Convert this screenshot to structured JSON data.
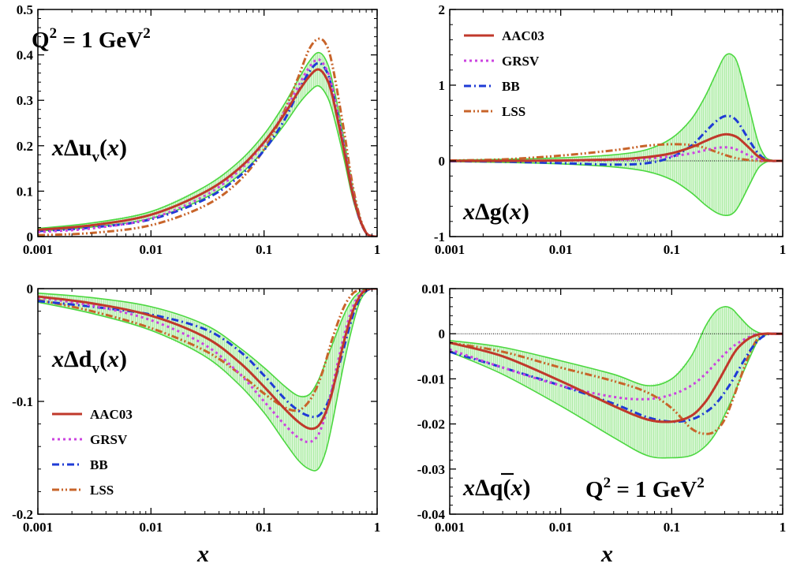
{
  "colors": {
    "AAC03": "#c0392b",
    "GRSV": "#cc44e0",
    "BB": "#1f3bd6",
    "LSS": "#c8642a",
    "band": "#4cd840",
    "band_fill": "#b8efb0"
  },
  "legend": [
    "AAC03",
    "GRSV",
    "BB",
    "LSS"
  ],
  "xlabel": "x",
  "chart_data": [
    {
      "type": "line",
      "panel": "top-left",
      "label": "xΔu_v(x)",
      "annotation": "Q² = 1 GeV²",
      "xscale": "log",
      "xlim": [
        0.001,
        1
      ],
      "ylim": [
        0,
        0.5
      ],
      "xticks": [
        "0.001",
        "0.01",
        "0.1",
        "1"
      ],
      "yticks": [
        "0",
        "0.1",
        "0.2",
        "0.3",
        "0.4",
        "0.5"
      ],
      "x": [
        0.001,
        0.003,
        0.01,
        0.03,
        0.06,
        0.1,
        0.15,
        0.2,
        0.25,
        0.3,
        0.35,
        0.4,
        0.5,
        0.6,
        0.7,
        0.8,
        0.9,
        1.0
      ],
      "band": {
        "upper": [
          0.018,
          0.03,
          0.055,
          0.11,
          0.165,
          0.225,
          0.29,
          0.345,
          0.385,
          0.405,
          0.39,
          0.345,
          0.225,
          0.115,
          0.045,
          0.01,
          0.001,
          0
        ],
        "lower": [
          0.012,
          0.021,
          0.04,
          0.085,
          0.135,
          0.19,
          0.245,
          0.29,
          0.318,
          0.332,
          0.315,
          0.278,
          0.18,
          0.09,
          0.035,
          0.007,
          0.001,
          0
        ]
      },
      "series": [
        {
          "name": "AAC03",
          "style": "solid",
          "values": [
            0.015,
            0.025,
            0.048,
            0.098,
            0.15,
            0.208,
            0.268,
            0.318,
            0.352,
            0.368,
            0.352,
            0.312,
            0.2,
            0.1,
            0.04,
            0.008,
            0.001,
            0
          ]
        },
        {
          "name": "GRSV",
          "style": "dot",
          "values": [
            0.01,
            0.018,
            0.04,
            0.09,
            0.145,
            0.205,
            0.272,
            0.33,
            0.372,
            0.39,
            0.372,
            0.33,
            0.21,
            0.105,
            0.04,
            0.008,
            0.001,
            0
          ]
        },
        {
          "name": "BB",
          "style": "dashdot",
          "values": [
            0.012,
            0.02,
            0.038,
            0.082,
            0.132,
            0.19,
            0.255,
            0.318,
            0.362,
            0.382,
            0.368,
            0.325,
            0.205,
            0.1,
            0.038,
            0.008,
            0.001,
            0
          ]
        },
        {
          "name": "LSS",
          "style": "dashdotdot",
          "values": [
            0.003,
            0.008,
            0.025,
            0.068,
            0.122,
            0.192,
            0.275,
            0.35,
            0.412,
            0.435,
            0.425,
            0.38,
            0.245,
            0.12,
            0.045,
            0.009,
            0.001,
            0
          ]
        }
      ]
    },
    {
      "type": "line",
      "panel": "top-right",
      "label": "xΔg(x)",
      "xscale": "log",
      "xlim": [
        0.001,
        1
      ],
      "ylim": [
        -1,
        2
      ],
      "xticks": [
        "0.001",
        "0.01",
        "0.1",
        "1"
      ],
      "yticks": [
        "-1",
        "0",
        "1",
        "2"
      ],
      "x": [
        0.001,
        0.003,
        0.01,
        0.03,
        0.06,
        0.1,
        0.15,
        0.2,
        0.25,
        0.3,
        0.35,
        0.4,
        0.5,
        0.6,
        0.7,
        0.8,
        0.9,
        1.0
      ],
      "band": {
        "upper": [
          0.01,
          0.02,
          0.04,
          0.08,
          0.15,
          0.3,
          0.55,
          0.85,
          1.15,
          1.38,
          1.4,
          1.25,
          0.7,
          0.25,
          0.05,
          0.01,
          0,
          0
        ],
        "lower": [
          -0.01,
          -0.02,
          -0.04,
          -0.08,
          -0.14,
          -0.25,
          -0.42,
          -0.58,
          -0.68,
          -0.72,
          -0.7,
          -0.6,
          -0.32,
          -0.1,
          -0.02,
          0,
          0,
          0
        ]
      },
      "series": [
        {
          "name": "AAC03",
          "style": "solid",
          "values": [
            0,
            0,
            0.005,
            0.02,
            0.05,
            0.1,
            0.18,
            0.26,
            0.32,
            0.35,
            0.34,
            0.3,
            0.17,
            0.06,
            0.01,
            0,
            0,
            0
          ]
        },
        {
          "name": "GRSV",
          "style": "dot",
          "values": [
            0,
            0,
            0.003,
            0.01,
            0.03,
            0.06,
            0.1,
            0.14,
            0.17,
            0.18,
            0.17,
            0.14,
            0.07,
            0.02,
            0.005,
            0,
            0,
            0
          ]
        },
        {
          "name": "BB",
          "style": "dashdot",
          "values": [
            -0.005,
            -0.01,
            -0.03,
            -0.05,
            -0.03,
            0.05,
            0.2,
            0.38,
            0.52,
            0.59,
            0.58,
            0.5,
            0.27,
            0.1,
            0.02,
            0,
            0,
            0
          ]
        },
        {
          "name": "LSS",
          "style": "dashdotdot",
          "values": [
            0.005,
            0.02,
            0.07,
            0.14,
            0.2,
            0.22,
            0.21,
            0.17,
            0.12,
            0.08,
            0.05,
            0.03,
            0.01,
            0,
            0,
            0,
            0,
            0
          ]
        }
      ]
    },
    {
      "type": "line",
      "panel": "bottom-left",
      "label": "xΔd_v(x)",
      "xscale": "log",
      "xlim": [
        0.001,
        1
      ],
      "ylim": [
        -0.2,
        0
      ],
      "xticks": [
        "0.001",
        "0.01",
        "0.1",
        "1"
      ],
      "yticks": [
        "-0.2",
        "-0.1",
        "0"
      ],
      "xlabel": "x",
      "legend_position": "bottom-left",
      "x": [
        0.001,
        0.003,
        0.01,
        0.03,
        0.06,
        0.1,
        0.15,
        0.2,
        0.25,
        0.3,
        0.35,
        0.4,
        0.5,
        0.6,
        0.7,
        0.8,
        0.9,
        1.0
      ],
      "band": {
        "upper": [
          -0.004,
          -0.008,
          -0.016,
          -0.032,
          -0.052,
          -0.07,
          -0.086,
          -0.095,
          -0.094,
          -0.082,
          -0.065,
          -0.05,
          -0.025,
          -0.01,
          -0.003,
          0,
          0,
          0
        ],
        "lower": [
          -0.012,
          -0.022,
          -0.037,
          -0.06,
          -0.085,
          -0.11,
          -0.135,
          -0.152,
          -0.16,
          -0.16,
          -0.145,
          -0.12,
          -0.07,
          -0.035,
          -0.012,
          -0.003,
          0,
          0
        ]
      },
      "series": [
        {
          "name": "AAC03",
          "style": "solid",
          "values": [
            -0.007,
            -0.013,
            -0.024,
            -0.043,
            -0.065,
            -0.087,
            -0.106,
            -0.118,
            -0.124,
            -0.122,
            -0.11,
            -0.092,
            -0.05,
            -0.022,
            -0.007,
            -0.001,
            0,
            0
          ]
        },
        {
          "name": "GRSV",
          "style": "dot",
          "values": [
            -0.008,
            -0.015,
            -0.028,
            -0.05,
            -0.075,
            -0.1,
            -0.12,
            -0.132,
            -0.136,
            -0.13,
            -0.112,
            -0.088,
            -0.045,
            -0.018,
            -0.005,
            0,
            0,
            0
          ]
        },
        {
          "name": "BB",
          "style": "dashdot",
          "values": [
            -0.011,
            -0.016,
            -0.023,
            -0.036,
            -0.055,
            -0.077,
            -0.097,
            -0.108,
            -0.113,
            -0.113,
            -0.105,
            -0.09,
            -0.055,
            -0.026,
            -0.009,
            -0.002,
            0,
            0
          ]
        },
        {
          "name": "LSS",
          "style": "dashdotdot",
          "values": [
            -0.01,
            -0.02,
            -0.035,
            -0.055,
            -0.075,
            -0.093,
            -0.105,
            -0.108,
            -0.1,
            -0.085,
            -0.065,
            -0.045,
            -0.018,
            -0.005,
            -0.001,
            0,
            0,
            0
          ]
        }
      ]
    },
    {
      "type": "line",
      "panel": "bottom-right",
      "label": "xΔq̄(x)",
      "annotation": "Q² = 1 GeV²",
      "xscale": "log",
      "xlim": [
        0.001,
        1
      ],
      "ylim": [
        -0.04,
        0.01
      ],
      "xticks": [
        "0.001",
        "0.01",
        "0.1",
        "1"
      ],
      "yticks": [
        "-0.04",
        "-0.03",
        "-0.02",
        "-0.01",
        "0",
        "0.01"
      ],
      "xlabel": "x",
      "x": [
        0.001,
        0.003,
        0.01,
        0.03,
        0.06,
        0.1,
        0.15,
        0.2,
        0.25,
        0.3,
        0.35,
        0.4,
        0.5,
        0.6,
        0.7,
        0.8,
        0.9,
        1.0
      ],
      "band": {
        "upper": [
          -0.0015,
          -0.003,
          -0.006,
          -0.009,
          -0.0115,
          -0.01,
          -0.005,
          0.0015,
          0.005,
          0.006,
          0.0055,
          0.004,
          0.0015,
          0.0003,
          0,
          0,
          0,
          0
        ],
        "lower": [
          -0.004,
          -0.009,
          -0.016,
          -0.023,
          -0.027,
          -0.0275,
          -0.027,
          -0.025,
          -0.022,
          -0.018,
          -0.0145,
          -0.011,
          -0.0055,
          -0.0015,
          -0.0003,
          0,
          0,
          0
        ]
      },
      "series": [
        {
          "name": "AAC03",
          "style": "solid",
          "values": [
            -0.002,
            -0.005,
            -0.0105,
            -0.016,
            -0.019,
            -0.0195,
            -0.0182,
            -0.0152,
            -0.0115,
            -0.008,
            -0.005,
            -0.003,
            -0.001,
            -0.0002,
            0,
            0,
            0,
            0
          ]
        },
        {
          "name": "GRSV",
          "style": "dot",
          "values": [
            -0.0035,
            -0.0075,
            -0.0115,
            -0.014,
            -0.0145,
            -0.0135,
            -0.0115,
            -0.009,
            -0.0065,
            -0.0045,
            -0.003,
            -0.002,
            -0.0007,
            -0.0001,
            0,
            0,
            0,
            0
          ]
        },
        {
          "name": "BB",
          "style": "dashdot",
          "values": [
            -0.004,
            -0.0075,
            -0.0115,
            -0.0155,
            -0.0185,
            -0.0195,
            -0.019,
            -0.0175,
            -0.0155,
            -0.013,
            -0.0105,
            -0.008,
            -0.004,
            -0.0015,
            -0.0003,
            0,
            0,
            0
          ]
        },
        {
          "name": "LSS",
          "style": "dashdotdot",
          "values": [
            -0.002,
            -0.004,
            -0.0075,
            -0.0105,
            -0.013,
            -0.0165,
            -0.021,
            -0.0222,
            -0.0215,
            -0.019,
            -0.015,
            -0.011,
            -0.0045,
            -0.001,
            0,
            0,
            0,
            0
          ]
        }
      ]
    }
  ]
}
